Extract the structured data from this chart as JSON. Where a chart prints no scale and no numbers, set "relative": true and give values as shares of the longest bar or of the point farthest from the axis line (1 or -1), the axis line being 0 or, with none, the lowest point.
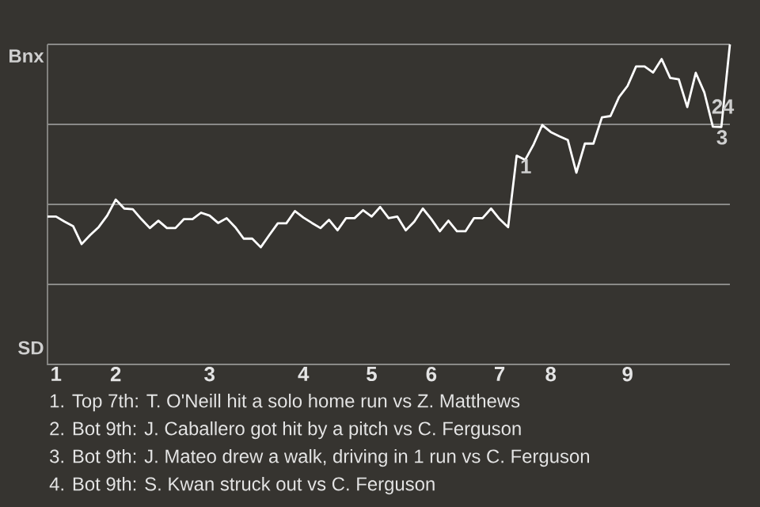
{
  "chart_data": {
    "type": "line",
    "relative": true,
    "categories": [
      null,
      "1",
      null,
      null,
      null,
      null,
      null,
      null,
      "2",
      null,
      null,
      null,
      null,
      null,
      null,
      null,
      null,
      null,
      null,
      "3",
      null,
      null,
      null,
      null,
      null,
      null,
      null,
      null,
      null,
      null,
      "4",
      null,
      null,
      null,
      null,
      null,
      null,
      null,
      "5",
      null,
      null,
      null,
      null,
      null,
      null,
      "6",
      null,
      null,
      null,
      null,
      null,
      null,
      null,
      "7",
      null,
      null,
      null,
      null,
      null,
      "8",
      null,
      null,
      null,
      null,
      null,
      null,
      null,
      null,
      "9",
      null,
      null,
      null,
      null,
      null,
      null,
      null,
      null,
      null,
      null,
      null,
      null
    ],
    "ref_lines": [
      {
        "axis": "y",
        "value": 0.25,
        "color": "#8a8a88"
      },
      {
        "axis": "y",
        "value": 0.5,
        "color": "#8a8a88"
      },
      {
        "axis": "y",
        "value": 0.75,
        "color": "#8a8a88"
      },
      {
        "axis": "y",
        "value": 1,
        "color": "#8a8a88"
      }
    ],
    "series": [
      {
        "color": "#ffffff",
        "values": [
          0.462,
          0.462,
          0.446,
          0.432,
          0.376,
          0.404,
          0.429,
          0.465,
          0.515,
          0.487,
          0.485,
          0.454,
          0.426,
          0.449,
          0.426,
          0.426,
          0.454,
          0.454,
          0.474,
          0.465,
          0.442,
          0.457,
          0.429,
          0.393,
          0.393,
          0.366,
          0.404,
          0.441,
          0.441,
          0.479,
          0.459,
          0.442,
          0.426,
          0.452,
          0.419,
          0.457,
          0.457,
          0.482,
          0.462,
          0.492,
          0.457,
          0.462,
          0.419,
          0.446,
          0.487,
          0.454,
          0.416,
          0.449,
          0.416,
          0.416,
          0.457,
          0.457,
          0.487,
          0.454,
          0.429,
          0.652,
          0.639,
          0.688,
          0.748,
          0.726,
          0.713,
          0.701,
          0.599,
          0.69,
          0.69,
          0.772,
          0.776,
          0.835,
          0.87,
          0.931,
          0.931,
          0.912,
          0.954,
          0.895,
          0.891,
          0.804,
          0.911,
          0.85,
          0.743,
          0.742,
          1.0
        ]
      }
    ],
    "annotations": [
      "Bnx",
      "SD",
      {
        "text": "1",
        "y": 0.652
      },
      {
        "text": "3",
        "y": 0.743
      },
      "2",
      "4",
      "1. Top 7th: T. O'Neill hit a solo home run vs Z. Matthews",
      "2. Bot 9th: J. Caballero got hit by a pitch vs C. Ferguson",
      "3. Bot 9th: J. Mateo drew a walk, driving in 1 run vs C. Ferguson",
      "4. Bot 9th: S. Kwan struck out vs C. Ferguson"
    ]
  }
}
